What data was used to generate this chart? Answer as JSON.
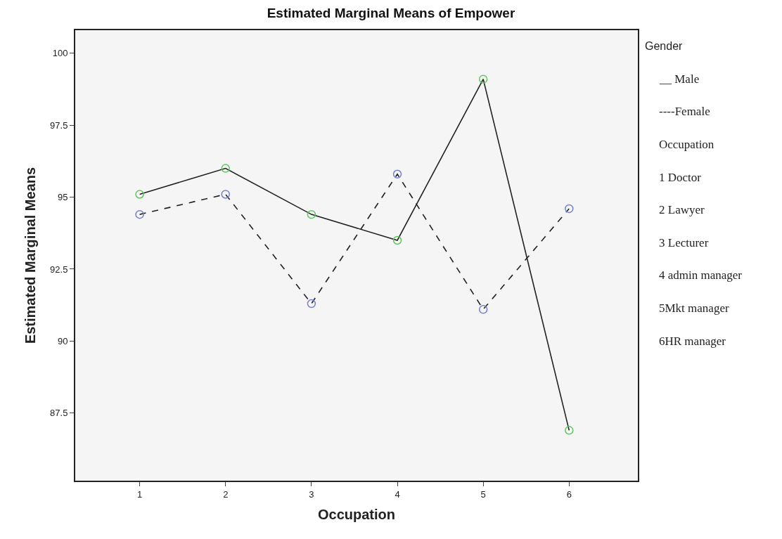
{
  "chart_data": {
    "type": "line",
    "title": "Estimated Marginal Means of Empower",
    "xlabel": "Occupation",
    "ylabel": "Estimated Marginal Means",
    "categories": [
      "1",
      "2",
      "3",
      "4",
      "5",
      "6"
    ],
    "series": [
      {
        "color": "#5cc85c",
        "line_style": "solid",
        "values": [
          95.1,
          96.0,
          94.4,
          93.5,
          99.1,
          86.9
        ]
      },
      {
        "color": "#7080d0",
        "line_style": "dashed",
        "values": [
          94.4,
          95.1,
          91.3,
          95.8,
          91.1,
          94.6
        ]
      }
    ],
    "ylim": [
      85.15,
      100.8
    ],
    "yticks": [
      87.5,
      90,
      92.5,
      95,
      97.5,
      100
    ],
    "grid": false,
    "marker": "circle",
    "annotations": [
      "Gender",
      "__ Male",
      "----Female",
      "Occupation",
      "1 Doctor",
      "2 Lawyer",
      "3 Lecturer",
      "4 admin manager",
      "5Mkt manager",
      "6HR manager"
    ]
  }
}
